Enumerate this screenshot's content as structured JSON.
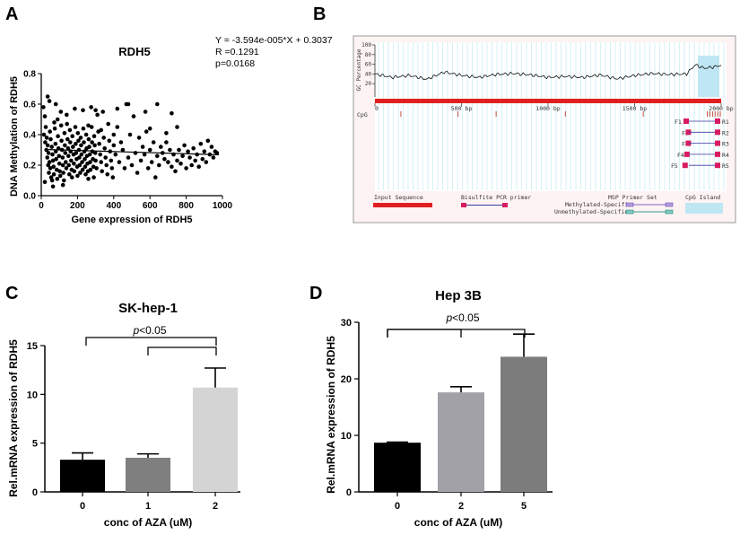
{
  "panel_a": {
    "letter": "A",
    "stats": {
      "eq": "Y = -3.594e-005*X + 0.3037",
      "r": "R =0.1291",
      "p": "p=0.0168"
    }
  },
  "panel_b": {
    "letter": "B",
    "gc_label": "GC Percentage",
    "gc_ticks": [
      "100",
      "80",
      "60",
      "40",
      "20"
    ],
    "bp_ticks": [
      "0",
      "500 bp",
      "1000 bp",
      "1500 bp",
      "2000 bp"
    ],
    "cpg_label": "CpG",
    "primer_pairs": [
      {
        "f": "F1",
        "r": "R1"
      },
      {
        "f": "F2",
        "r": "R2"
      },
      {
        "f": "F3",
        "r": "R3"
      },
      {
        "f": "F4",
        "r": "R4"
      },
      {
        "f": "F5",
        "r": "R5"
      }
    ],
    "legend": {
      "input_sequence": "Input Sequence",
      "bisulfite": "Bisulfite PCR primer",
      "msp": "MSP Primer Set",
      "methylated": "Methylated-Specific",
      "unmethylated": "Unmethylated-Specific",
      "cpg_island": "CpG Island"
    }
  },
  "panel_c": {
    "letter": "C",
    "sig": "<0.05",
    "p_italic": "p"
  },
  "panel_d": {
    "letter": "D",
    "sig": "<0.05",
    "p_italic": "p"
  },
  "colors": {
    "scatter": "#000000",
    "bar_black": "#000000",
    "bar_dark_gray": "#7f7f7f",
    "bar_light_gray": "#d4d4d4",
    "bar_mid_gray": "#a1a1a7",
    "bar_gray": "#7c7c7c",
    "cpg_island": "#bfe6f3",
    "input_seq": "#e02020",
    "primer_pink": "#d81b60"
  },
  "chart_data": [
    {
      "id": "A",
      "type": "scatter",
      "title": "RDH5",
      "xlabel": "Gene expression of RDH5",
      "ylabel": "DNA Methylation of RDH5",
      "xlim": [
        0,
        1000
      ],
      "ylim": [
        0.0,
        0.8
      ],
      "xticks": [
        0,
        200,
        400,
        600,
        800,
        1000
      ],
      "yticks": [
        0.0,
        0.2,
        0.4,
        0.6,
        0.8
      ],
      "regression": {
        "slope": -3.594e-05,
        "intercept": 0.3037
      },
      "points": [
        [
          12,
          0.58
        ],
        [
          20,
          0.52
        ],
        [
          25,
          0.45
        ],
        [
          30,
          0.38
        ],
        [
          35,
          0.33
        ],
        [
          40,
          0.28
        ],
        [
          45,
          0.22
        ],
        [
          50,
          0.18
        ],
        [
          55,
          0.12
        ],
        [
          60,
          0.1
        ],
        [
          15,
          0.4
        ],
        [
          22,
          0.35
        ],
        [
          28,
          0.3
        ],
        [
          33,
          0.25
        ],
        [
          38,
          0.2
        ],
        [
          42,
          0.15
        ],
        [
          48,
          0.42
        ],
        [
          52,
          0.37
        ],
        [
          58,
          0.32
        ],
        [
          62,
          0.27
        ],
        [
          65,
          0.23
        ],
        [
          68,
          0.19
        ],
        [
          70,
          0.14
        ],
        [
          72,
          0.48
        ],
        [
          75,
          0.44
        ],
        [
          78,
          0.34
        ],
        [
          80,
          0.29
        ],
        [
          82,
          0.24
        ],
        [
          85,
          0.17
        ],
        [
          88,
          0.11
        ],
        [
          90,
          0.5
        ],
        [
          92,
          0.39
        ],
        [
          95,
          0.31
        ],
        [
          98,
          0.26
        ],
        [
          100,
          0.21
        ],
        [
          102,
          0.16
        ],
        [
          105,
          0.13
        ],
        [
          108,
          0.55
        ],
        [
          110,
          0.46
        ],
        [
          112,
          0.36
        ],
        [
          115,
          0.3
        ],
        [
          118,
          0.25
        ],
        [
          120,
          0.2
        ],
        [
          122,
          0.15
        ],
        [
          125,
          0.1
        ],
        [
          128,
          0.41
        ],
        [
          130,
          0.33
        ],
        [
          132,
          0.28
        ],
        [
          135,
          0.22
        ],
        [
          138,
          0.18
        ],
        [
          140,
          0.53
        ],
        [
          142,
          0.47
        ],
        [
          145,
          0.37
        ],
        [
          148,
          0.31
        ],
        [
          150,
          0.26
        ],
        [
          152,
          0.2
        ],
        [
          155,
          0.14
        ],
        [
          158,
          0.43
        ],
        [
          160,
          0.35
        ],
        [
          162,
          0.29
        ],
        [
          165,
          0.23
        ],
        [
          168,
          0.17
        ],
        [
          170,
          0.12
        ],
        [
          172,
          0.39
        ],
        [
          175,
          0.32
        ],
        [
          178,
          0.27
        ],
        [
          180,
          0.21
        ],
        [
          182,
          0.16
        ],
        [
          185,
          0.57
        ],
        [
          188,
          0.45
        ],
        [
          190,
          0.34
        ],
        [
          192,
          0.28
        ],
        [
          195,
          0.24
        ],
        [
          198,
          0.19
        ],
        [
          200,
          0.13
        ],
        [
          202,
          0.41
        ],
        [
          205,
          0.36
        ],
        [
          208,
          0.3
        ],
        [
          210,
          0.25
        ],
        [
          212,
          0.2
        ],
        [
          215,
          0.15
        ],
        [
          218,
          0.38
        ],
        [
          220,
          0.33
        ],
        [
          222,
          0.27
        ],
        [
          225,
          0.22
        ],
        [
          228,
          0.17
        ],
        [
          230,
          0.56
        ],
        [
          232,
          0.44
        ],
        [
          235,
          0.35
        ],
        [
          238,
          0.29
        ],
        [
          240,
          0.24
        ],
        [
          242,
          0.19
        ],
        [
          245,
          0.14
        ],
        [
          248,
          0.4
        ],
        [
          250,
          0.31
        ],
        [
          252,
          0.26
        ],
        [
          255,
          0.21
        ],
        [
          258,
          0.16
        ],
        [
          260,
          0.11
        ],
        [
          262,
          0.37
        ],
        [
          265,
          0.32
        ],
        [
          268,
          0.27
        ],
        [
          270,
          0.22
        ],
        [
          272,
          0.17
        ],
        [
          275,
          0.58
        ],
        [
          278,
          0.45
        ],
        [
          280,
          0.35
        ],
        [
          282,
          0.29
        ],
        [
          285,
          0.24
        ],
        [
          288,
          0.19
        ],
        [
          290,
          0.12
        ],
        [
          292,
          0.39
        ],
        [
          295,
          0.33
        ],
        [
          298,
          0.28
        ],
        [
          300,
          0.23
        ],
        [
          305,
          0.18
        ],
        [
          310,
          0.53
        ],
        [
          315,
          0.42
        ],
        [
          320,
          0.34
        ],
        [
          325,
          0.27
        ],
        [
          330,
          0.22
        ],
        [
          335,
          0.16
        ],
        [
          340,
          0.55
        ],
        [
          345,
          0.38
        ],
        [
          350,
          0.31
        ],
        [
          355,
          0.25
        ],
        [
          360,
          0.2
        ],
        [
          365,
          0.14
        ],
        [
          370,
          0.47
        ],
        [
          375,
          0.36
        ],
        [
          380,
          0.29
        ],
        [
          385,
          0.23
        ],
        [
          390,
          0.18
        ],
        [
          395,
          0.12
        ],
        [
          400,
          0.33
        ],
        [
          410,
          0.27
        ],
        [
          420,
          0.45
        ],
        [
          430,
          0.22
        ],
        [
          440,
          0.35
        ],
        [
          450,
          0.3
        ],
        [
          460,
          0.18
        ],
        [
          470,
          0.6
        ],
        [
          480,
          0.25
        ],
        [
          490,
          0.4
        ],
        [
          500,
          0.2
        ],
        [
          510,
          0.52
        ],
        [
          520,
          0.28
        ],
        [
          530,
          0.15
        ],
        [
          540,
          0.38
        ],
        [
          550,
          0.23
        ],
        [
          560,
          0.32
        ],
        [
          570,
          0.27
        ],
        [
          580,
          0.42
        ],
        [
          590,
          0.18
        ],
        [
          600,
          0.3
        ],
        [
          610,
          0.22
        ],
        [
          620,
          0.35
        ],
        [
          630,
          0.12
        ],
        [
          640,
          0.26
        ],
        [
          650,
          0.2
        ],
        [
          660,
          0.32
        ],
        [
          670,
          0.28
        ],
        [
          680,
          0.24
        ],
        [
          690,
          0.35
        ],
        [
          700,
          0.22
        ],
        [
          710,
          0.3
        ],
        [
          720,
          0.19
        ],
        [
          730,
          0.27
        ],
        [
          740,
          0.16
        ],
        [
          750,
          0.23
        ],
        [
          760,
          0.3
        ],
        [
          770,
          0.21
        ],
        [
          780,
          0.26
        ],
        [
          790,
          0.33
        ],
        [
          800,
          0.18
        ],
        [
          810,
          0.29
        ],
        [
          820,
          0.25
        ],
        [
          830,
          0.2
        ],
        [
          840,
          0.31
        ],
        [
          850,
          0.23
        ],
        [
          860,
          0.27
        ],
        [
          870,
          0.19
        ],
        [
          880,
          0.34
        ],
        [
          890,
          0.24
        ],
        [
          900,
          0.29
        ],
        [
          910,
          0.22
        ],
        [
          920,
          0.36
        ],
        [
          930,
          0.27
        ],
        [
          940,
          0.32
        ],
        [
          950,
          0.25
        ],
        [
          960,
          0.29
        ],
        [
          970,
          0.28
        ],
        [
          65,
          0.06
        ],
        [
          20,
          0.09
        ],
        [
          120,
          0.07
        ],
        [
          45,
          0.62
        ],
        [
          35,
          0.65
        ],
        [
          80,
          0.6
        ],
        [
          300,
          0.56
        ],
        [
          420,
          0.57
        ],
        [
          480,
          0.6
        ],
        [
          575,
          0.55
        ],
        [
          640,
          0.6
        ],
        [
          720,
          0.54
        ],
        [
          750,
          0.45
        ],
        [
          400,
          0.4
        ],
        [
          330,
          0.43
        ],
        [
          260,
          0.46
        ],
        [
          600,
          0.44
        ],
        [
          690,
          0.41
        ]
      ]
    },
    {
      "id": "C",
      "type": "bar",
      "title": "SK-hep-1",
      "xlabel": "conc of AZA (uM)",
      "ylabel": "Rel.mRNA expression of RDH5",
      "categories": [
        "0",
        "1",
        "2"
      ],
      "values": [
        3.3,
        3.5,
        10.7
      ],
      "errors": [
        0.7,
        0.4,
        2.0
      ],
      "ylim": [
        0,
        15
      ],
      "yticks": [
        0,
        5,
        10,
        15
      ]
    },
    {
      "id": "D",
      "type": "bar",
      "title": "Hep 3B",
      "xlabel": "conc of AZA (uM)",
      "ylabel": "Rel.mRNA expression of RDH5",
      "categories": [
        "0",
        "2",
        "5"
      ],
      "values": [
        8.7,
        17.6,
        23.9
      ],
      "errors": [
        0.1,
        1.0,
        4.0
      ],
      "ylim": [
        0,
        30
      ],
      "yticks": [
        0,
        10,
        20,
        30
      ]
    },
    {
      "id": "B",
      "type": "line",
      "title": "",
      "xlabel": "",
      "ylabel": "GC Percentage",
      "xlim": [
        0,
        2000
      ],
      "ylim": [
        0,
        100
      ],
      "x": [
        0,
        100,
        200,
        300,
        400,
        500,
        600,
        700,
        800,
        900,
        1000,
        1100,
        1200,
        1300,
        1400,
        1500,
        1600,
        1700,
        1800,
        1850,
        1900,
        1950,
        2000
      ],
      "series": [
        {
          "name": "GC Percentage",
          "values": [
            40,
            33,
            37,
            29,
            44,
            37,
            33,
            39,
            41,
            38,
            33,
            35,
            33,
            38,
            30,
            37,
            41,
            39,
            40,
            59,
            52,
            54,
            58
          ]
        }
      ],
      "cpg_sites_bp": [
        150,
        480,
        700,
        1100,
        1550,
        1920,
        1935,
        1950,
        1965,
        1980,
        1995
      ]
    }
  ]
}
